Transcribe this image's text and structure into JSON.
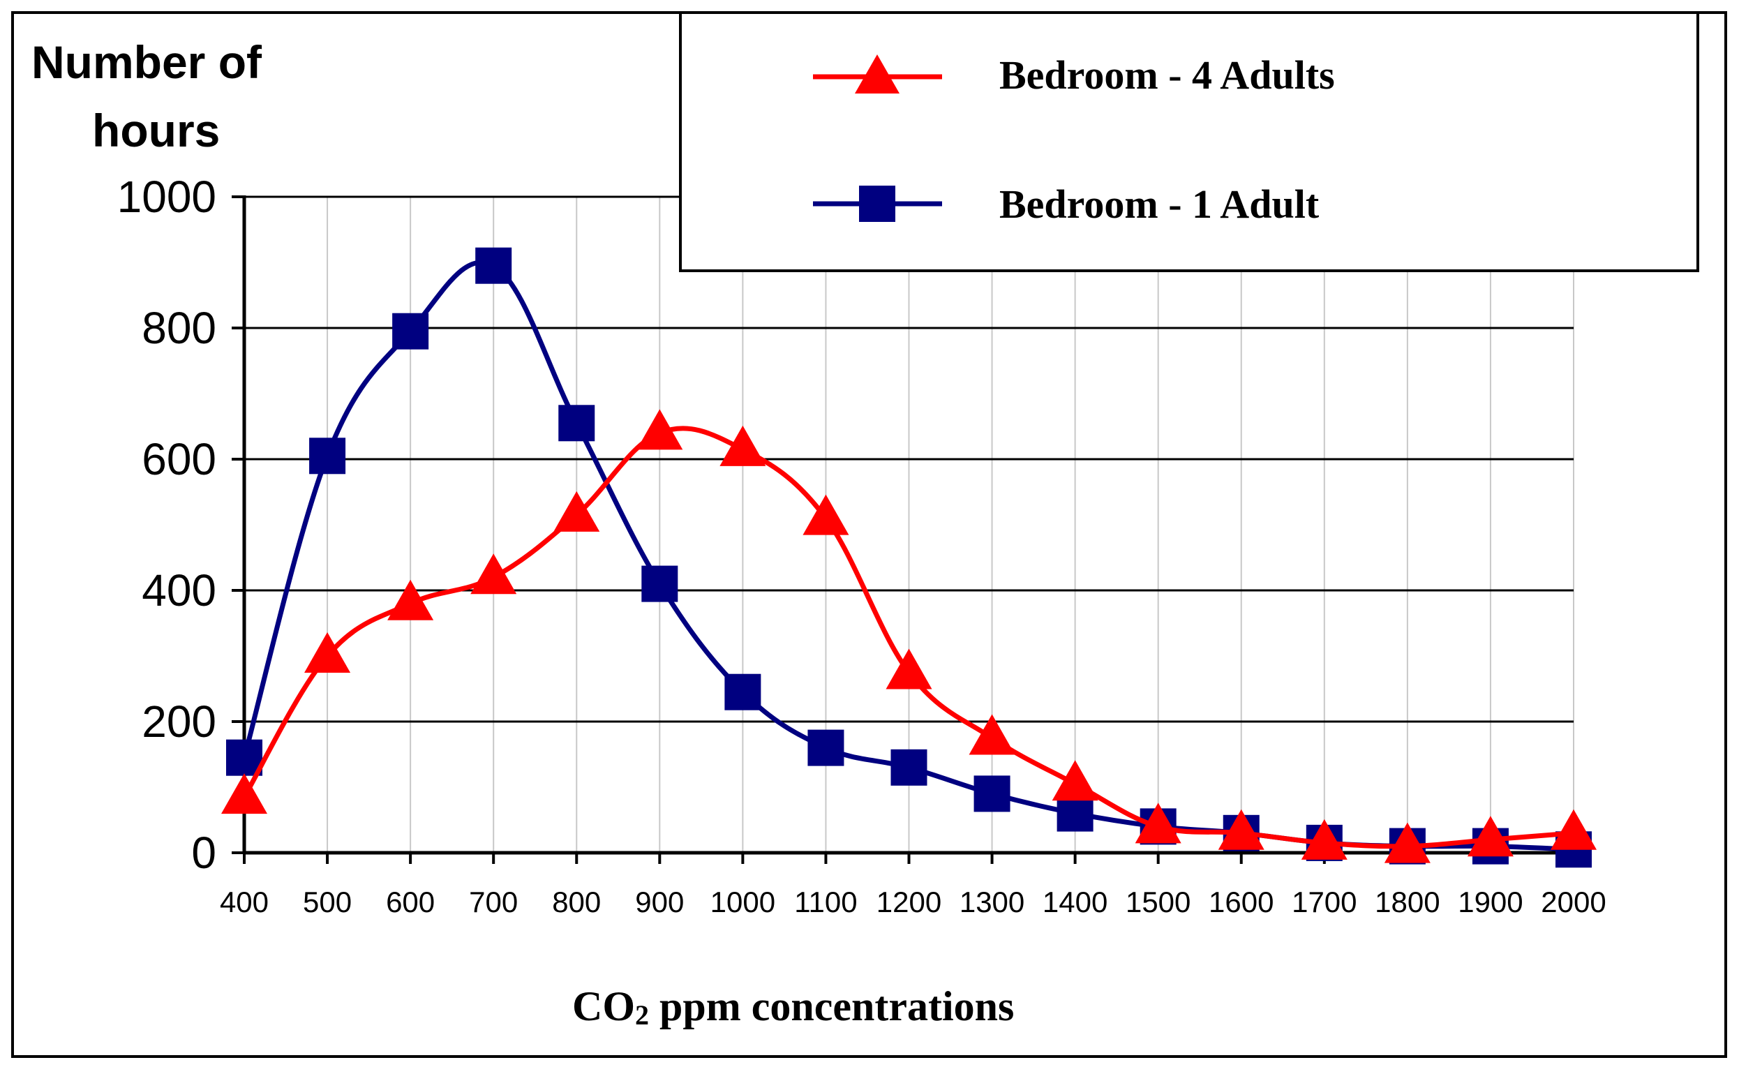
{
  "chart_data": {
    "type": "line",
    "ylabel_line1": "Number of",
    "ylabel_line2": "hours",
    "xlabel_main": "CO",
    "xlabel_sub": "2",
    "xlabel_rest": " ppm concentrations",
    "ylim": [
      0,
      1000
    ],
    "yticks": [
      0,
      200,
      400,
      600,
      800,
      1000
    ],
    "categories": [
      "400",
      "500",
      "600",
      "700",
      "800",
      "900",
      "1000",
      "1100",
      "1200",
      "1300",
      "1400",
      "1500",
      "1600",
      "1700",
      "1800",
      "1900",
      "2000"
    ],
    "series": [
      {
        "name": "Bedroom - 4 Adults",
        "color": "#ff0000",
        "marker": "triangle",
        "values": [
          85,
          300,
          380,
          420,
          515,
          640,
          615,
          510,
          275,
          175,
          105,
          40,
          30,
          15,
          10,
          20,
          30
        ]
      },
      {
        "name": "Bedroom - 1 Adult",
        "color": "#000080",
        "marker": "square",
        "values": [
          145,
          605,
          795,
          895,
          655,
          410,
          245,
          160,
          130,
          90,
          60,
          40,
          30,
          15,
          10,
          10,
          5
        ]
      }
    ]
  }
}
